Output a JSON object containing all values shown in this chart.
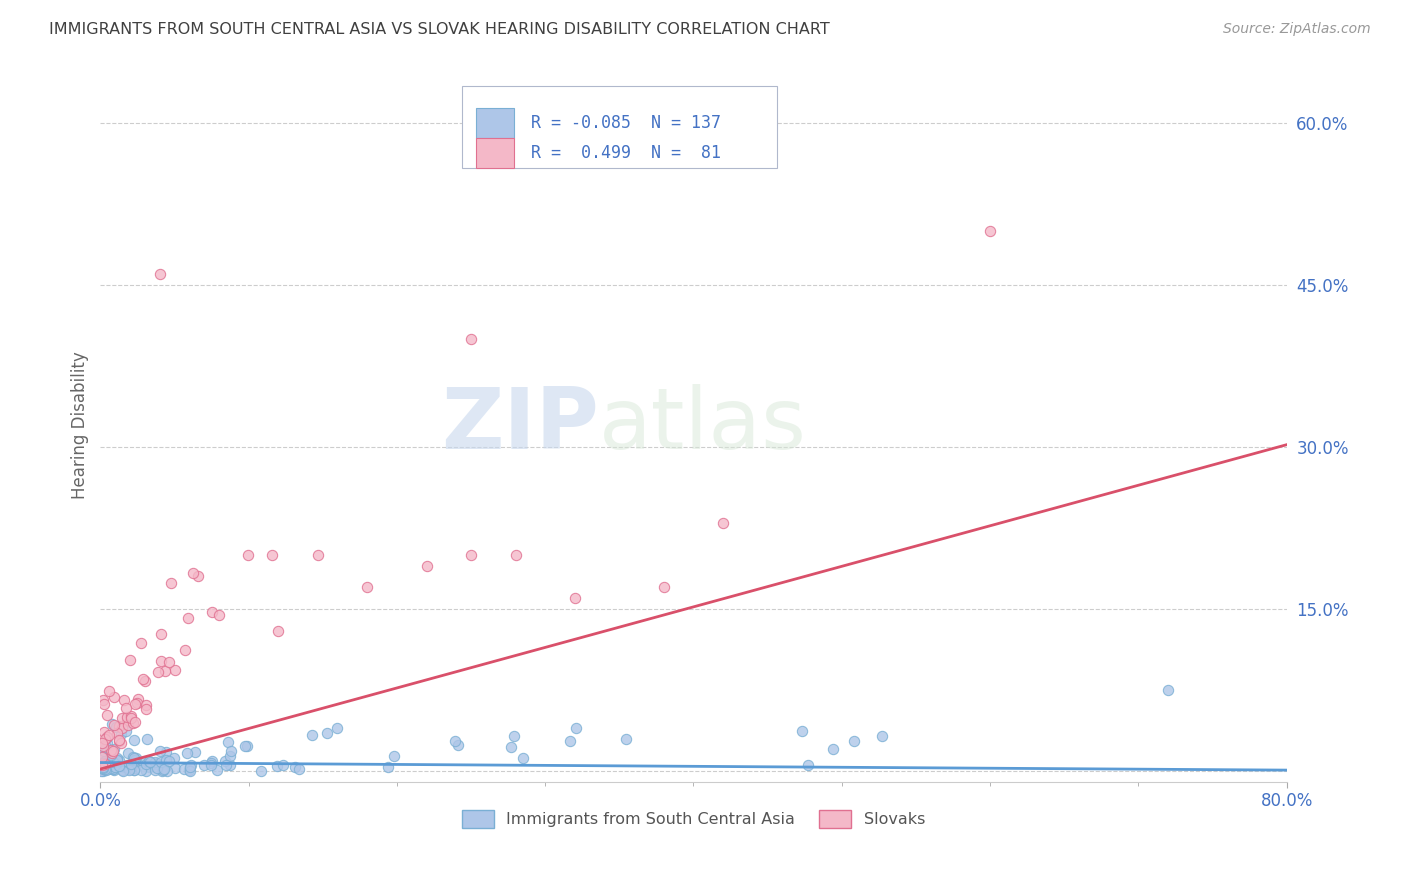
{
  "title": "IMMIGRANTS FROM SOUTH CENTRAL ASIA VS SLOVAK HEARING DISABILITY CORRELATION CHART",
  "source": "Source: ZipAtlas.com",
  "ylabel_text": "Hearing Disability",
  "xlim": [
    0.0,
    0.8
  ],
  "ylim": [
    -0.01,
    0.65
  ],
  "xtick_positions": [
    0.0,
    0.8
  ],
  "xtick_labels": [
    "0.0%",
    "80.0%"
  ],
  "ytick_positions": [
    0.0,
    0.15,
    0.3,
    0.45,
    0.6
  ],
  "ytick_labels": [
    "",
    "15.0%",
    "30.0%",
    "45.0%",
    "60.0%"
  ],
  "blue_fill": "#aec6e8",
  "blue_edge": "#7aafd4",
  "pink_fill": "#f4b8c8",
  "pink_edge": "#e07090",
  "blue_line_color": "#5b9bd5",
  "pink_line_color": "#d9506a",
  "legend_R_blue": "-0.085",
  "legend_N_blue": "137",
  "legend_R_pink": "0.499",
  "legend_N_pink": "81",
  "legend_label_blue": "Immigrants from South Central Asia",
  "legend_label_pink": "Slovaks",
  "watermark_zip": "ZIP",
  "watermark_atlas": "atlas",
  "title_color": "#404040",
  "axis_tick_color": "#4472c4",
  "grid_color": "#c8c8c8",
  "blue_N": 137,
  "pink_N": 81,
  "blue_line_y0": 0.008,
  "blue_line_y1": 0.001,
  "pink_line_y0": 0.002,
  "pink_line_y1": 0.302
}
